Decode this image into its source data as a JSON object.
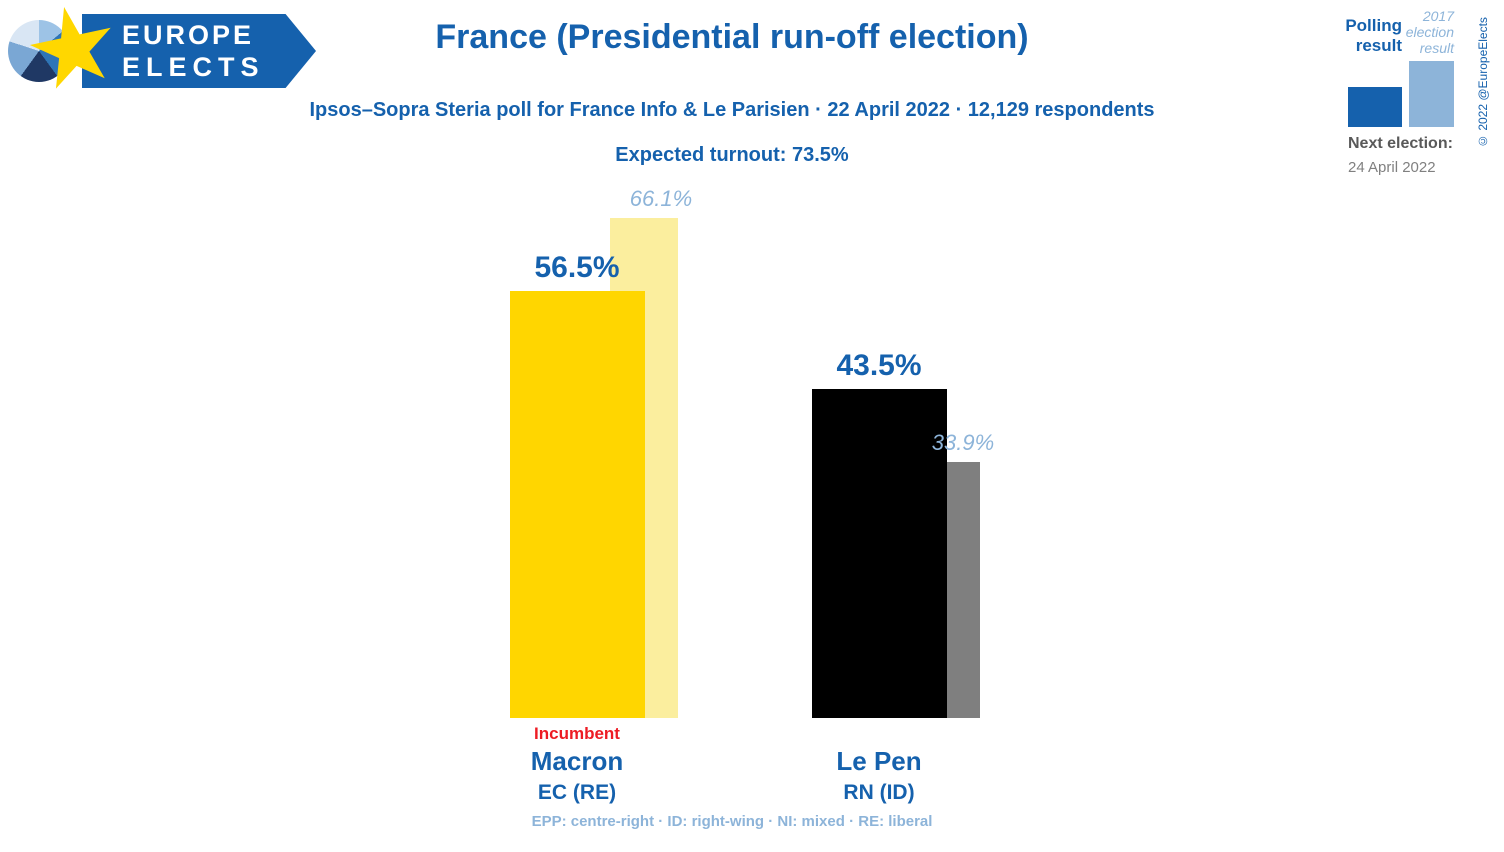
{
  "logo": {
    "line1": "EUROPE",
    "line2": "ELECTS"
  },
  "header": {
    "title": "France (Presidential run-off election)",
    "subtitle": "Ipsos–Sopra Steria poll for France Info & Le Parisien · 22 April 2022 · 12,129 respondents",
    "turnout": "Expected turnout: 73.5%"
  },
  "legend": {
    "polling": "Polling result",
    "election": "2017 election result",
    "next_election_label": "Next election:",
    "next_election_date": "24 April 2022"
  },
  "footer": {
    "note": "EPP: centre-right · ID: right-wing · NI: mixed · RE: liberal"
  },
  "copyright": "© 2022 @EuropeElects",
  "colors": {
    "brand_blue": "#1561ad",
    "light_blue": "#8db4d9",
    "incumbent_red": "#ed1c24",
    "macron_polling": "#ffd600",
    "macron_election": "#fbee9e",
    "lepen_polling": "#000000",
    "lepen_election": "#7f7f7f"
  },
  "chart_data": {
    "type": "bar",
    "title": "France (Presidential run-off election)",
    "categories": [
      "Macron",
      "Le Pen"
    ],
    "series": [
      {
        "name": "Polling result",
        "values": [
          56.5,
          43.5
        ]
      },
      {
        "name": "2017 election result",
        "values": [
          66.1,
          33.9
        ]
      }
    ],
    "unit": "%",
    "ylim": [
      0,
      70
    ],
    "grid": false,
    "legend_position": "top-right",
    "candidates": [
      {
        "name": "Macron",
        "party": "EC (RE)",
        "status": "Incumbent",
        "polling": 56.5,
        "polling_label": "56.5%",
        "election2017": 66.1,
        "election2017_label": "66.1%"
      },
      {
        "name": "Le Pen",
        "party": "RN (ID)",
        "status": "",
        "polling": 43.5,
        "polling_label": "43.5%",
        "election2017": 33.9,
        "election2017_label": "33.9%"
      }
    ]
  }
}
